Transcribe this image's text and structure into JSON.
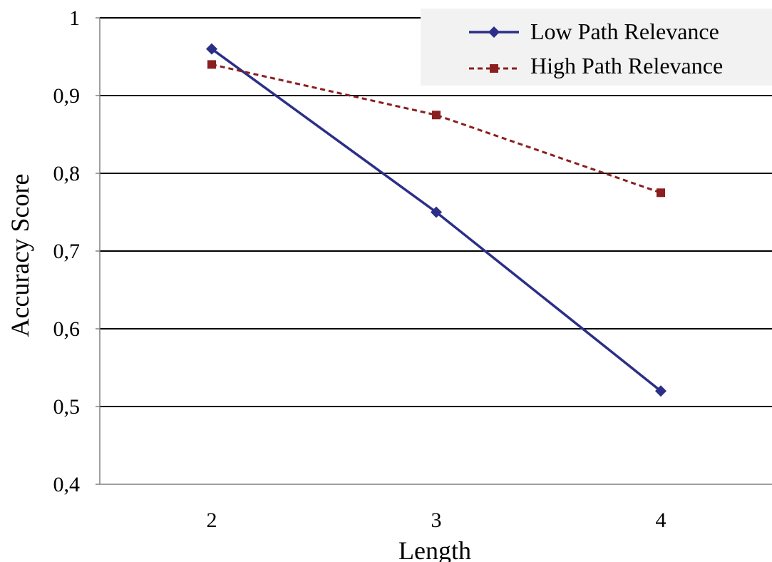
{
  "chart_data": {
    "type": "line",
    "x": [
      2,
      3,
      4
    ],
    "x_tick_labels": [
      "2",
      "3",
      "4"
    ],
    "xlabel": "Length",
    "ylabel": "Accuracy Score",
    "ylim": [
      0.4,
      1.0
    ],
    "y_ticks": [
      0.4,
      0.5,
      0.6,
      0.7,
      0.8,
      0.9,
      1.0
    ],
    "y_tick_labels": [
      "0,4",
      "0,5",
      "0,6",
      "0,7",
      "0,8",
      "0,9",
      "1"
    ],
    "grid": "horizontal",
    "legend_position": "top-right",
    "series": [
      {
        "name": "Low Path Relevance",
        "values": [
          0.96,
          0.75,
          0.52
        ],
        "color": "#2b2f87",
        "marker": "diamond",
        "line_style": "solid"
      },
      {
        "name": "High Path Relevance",
        "values": [
          0.94,
          0.875,
          0.775
        ],
        "color": "#8b1f1f",
        "marker": "square",
        "line_style": "dashed"
      }
    ]
  }
}
